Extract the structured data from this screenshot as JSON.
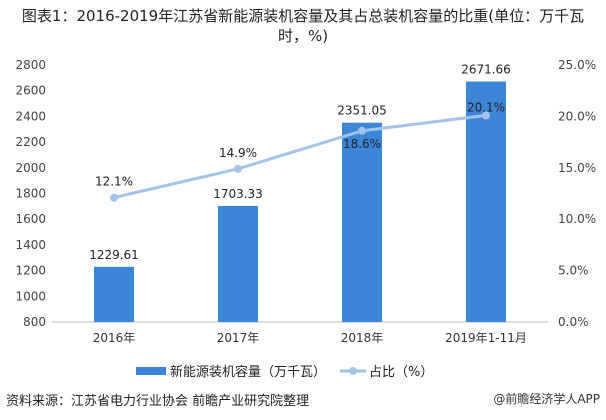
{
  "title": "图表1：2016-2019年江苏省新能源装机容量及其占总装机容量的比重(单位：万千瓦时，%)",
  "source": "资料来源：江苏省电力行业协会 前瞻产业研究院整理",
  "brand": "@前瞻经济学人APP",
  "chart_data": {
    "type": "bar",
    "title": "图表1：2016-2019年江苏省新能源装机容量及其占总装机容量的比重(单位：万千瓦时，%)",
    "categories": [
      "2016年",
      "2017年",
      "2018年",
      "2019年1-11月"
    ],
    "series": [
      {
        "name": "新能源装机容量（万千瓦）",
        "type": "bar",
        "axis": "left",
        "values": [
          1229.61,
          1703.33,
          2351.05,
          2671.66
        ],
        "labels": [
          "1229.61",
          "1703.33",
          "2351.05",
          "2671.66"
        ],
        "color": "#3d85d8"
      },
      {
        "name": "占比（%）",
        "type": "line",
        "axis": "right",
        "values": [
          12.1,
          14.9,
          18.6,
          20.1
        ],
        "labels": [
          "12.1%",
          "14.9%",
          "18.6%",
          "20.1%"
        ],
        "color": "#a3c4ea"
      }
    ],
    "ylim_left": [
      800,
      2800
    ],
    "yticks_left": [
      "800",
      "1000",
      "1200",
      "1400",
      "1600",
      "1800",
      "2000",
      "2200",
      "2400",
      "2600",
      "2800"
    ],
    "ylim_right": [
      0,
      25
    ],
    "yticks_right": [
      "0.0%",
      "5.0%",
      "10.0%",
      "15.0%",
      "20.0%",
      "25.0%"
    ],
    "grid": false,
    "legend": "bottom"
  }
}
